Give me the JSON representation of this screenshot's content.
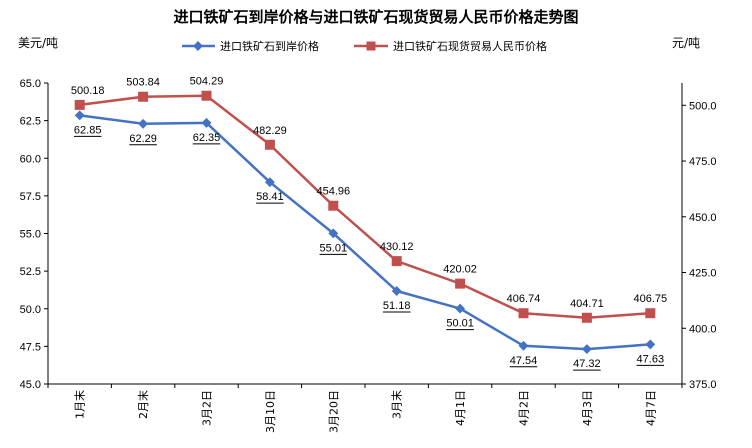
{
  "chart_data": {
    "type": "line",
    "title": "进口铁矿石到岸价格与进口铁矿石现货贸易人民币价格走势图",
    "y_left_unit": "美元/吨",
    "y_right_unit": "元/吨",
    "categories": [
      "1月末",
      "2月末",
      "3月2日",
      "3月10日",
      "3月20日",
      "3月末",
      "4月1日",
      "4月2日",
      "4月3日",
      "4月7日"
    ],
    "y_left": {
      "min": 45.0,
      "max": 65.0,
      "ticks": [
        "45.0",
        "47.5",
        "50.0",
        "52.5",
        "55.0",
        "57.5",
        "60.0",
        "62.5",
        "65.0"
      ]
    },
    "y_right": {
      "min": 375.0,
      "max": 510.0,
      "ticks": [
        "375.0",
        "400.0",
        "425.0",
        "450.0",
        "475.0",
        "500.0"
      ]
    },
    "grid": false,
    "legend_position": "top",
    "series": [
      {
        "name": "进口铁矿石到岸价格",
        "axis": "left",
        "color": "#4472C4",
        "marker": "diamond",
        "values": [
          62.85,
          62.29,
          62.35,
          58.41,
          55.01,
          51.18,
          50.01,
          47.54,
          47.32,
          47.63
        ],
        "labels": [
          "62.85",
          "62.29",
          "62.35",
          "58.41",
          "55.01",
          "51.18",
          "50.01",
          "47.54",
          "47.32",
          "47.63"
        ]
      },
      {
        "name": "进口铁矿石现货贸易人民币价格",
        "axis": "right",
        "color": "#C0504D",
        "marker": "square",
        "values": [
          500.18,
          503.84,
          504.29,
          482.29,
          454.96,
          430.12,
          420.02,
          406.74,
          404.71,
          406.75
        ],
        "labels": [
          "500.18",
          "503.84",
          "504.29",
          "482.29",
          "454.96",
          "430.12",
          "420.02",
          "406.74",
          "404.71",
          "406.75"
        ]
      }
    ]
  }
}
